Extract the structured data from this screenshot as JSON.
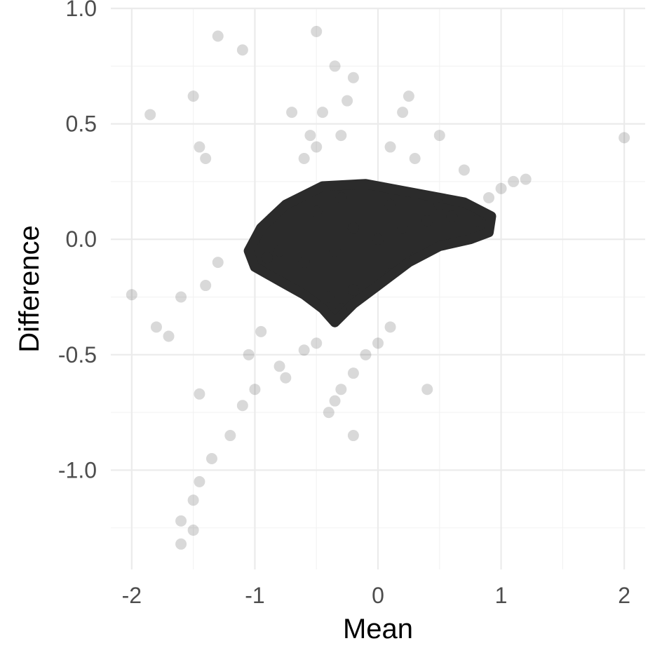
{
  "chart_data": {
    "type": "scatter",
    "title": "",
    "xlabel": "Mean",
    "ylabel": "Difference",
    "xlim": [
      -2.17,
      2.17
    ],
    "ylim": [
      -1.43,
      1.0
    ],
    "x_ticks": [
      -2,
      -1,
      0,
      1,
      2
    ],
    "x_tick_labels": [
      "-2",
      "-1",
      "0",
      "1",
      "2"
    ],
    "y_ticks": [
      -1.0,
      -0.5,
      0.0,
      0.5,
      1.0
    ],
    "y_tick_labels": [
      "-1.0",
      "-0.5",
      "0.0",
      "0.5",
      "1.0"
    ],
    "grid": true,
    "point_color": "#2b2b2b",
    "point_alpha": "very low (overplotted)",
    "point_count_note": "very dense cloud; representative sample of visible points",
    "series": [
      {
        "points": [
          [
            -0.35,
            -0.05
          ],
          [
            -0.2,
            0.05
          ],
          [
            0.0,
            0.0
          ],
          [
            0.2,
            0.05
          ],
          [
            0.4,
            0.08
          ],
          [
            0.6,
            0.1
          ],
          [
            0.8,
            0.08
          ],
          [
            -0.6,
            -0.1
          ],
          [
            -0.8,
            -0.05
          ],
          [
            -0.9,
            -0.08
          ],
          [
            -0.5,
            0.12
          ],
          [
            -0.3,
            0.18
          ],
          [
            0.1,
            0.15
          ],
          [
            0.5,
            0.15
          ],
          [
            -0.4,
            -0.25
          ],
          [
            -0.3,
            -0.3
          ],
          [
            -0.2,
            -0.22
          ],
          [
            0.1,
            -0.15
          ],
          [
            0.3,
            -0.08
          ],
          [
            -0.55,
            0.45
          ],
          [
            -0.5,
            0.4
          ],
          [
            -0.45,
            0.55
          ],
          [
            -0.3,
            0.45
          ],
          [
            -0.25,
            0.6
          ],
          [
            -0.35,
            0.75
          ],
          [
            -0.2,
            0.7
          ],
          [
            -0.6,
            0.35
          ],
          [
            -0.7,
            0.55
          ],
          [
            0.1,
            0.4
          ],
          [
            0.2,
            0.55
          ],
          [
            0.3,
            0.35
          ],
          [
            0.25,
            0.62
          ],
          [
            -1.3,
            0.88
          ],
          [
            -1.1,
            0.82
          ],
          [
            -0.5,
            0.9
          ],
          [
            -0.8,
            -0.55
          ],
          [
            -0.75,
            -0.6
          ],
          [
            -0.6,
            -0.48
          ],
          [
            -0.5,
            -0.45
          ],
          [
            -0.95,
            -0.4
          ],
          [
            -1.05,
            -0.5
          ],
          [
            -0.4,
            -0.75
          ],
          [
            -0.35,
            -0.7
          ],
          [
            -0.3,
            -0.65
          ],
          [
            -0.2,
            -0.58
          ],
          [
            -0.1,
            -0.5
          ],
          [
            0.0,
            -0.45
          ],
          [
            0.1,
            -0.38
          ],
          [
            -0.2,
            -0.85
          ],
          [
            0.4,
            -0.65
          ],
          [
            -1.6,
            -1.22
          ],
          [
            -1.5,
            -1.13
          ],
          [
            -1.45,
            -1.05
          ],
          [
            -1.35,
            -0.95
          ],
          [
            -1.2,
            -0.85
          ],
          [
            -1.1,
            -0.72
          ],
          [
            -1.0,
            -0.65
          ],
          [
            -1.6,
            -1.32
          ],
          [
            -1.5,
            -1.26
          ],
          [
            -1.7,
            -0.42
          ],
          [
            -1.8,
            -0.38
          ],
          [
            -1.6,
            -0.25
          ],
          [
            -1.4,
            -0.2
          ],
          [
            -1.3,
            -0.1
          ],
          [
            -1.45,
            -0.67
          ],
          [
            -1.5,
            0.62
          ],
          [
            -1.45,
            0.4
          ],
          [
            -1.4,
            0.35
          ],
          [
            -1.85,
            0.54
          ],
          [
            -2.0,
            -0.24
          ],
          [
            1.0,
            0.22
          ],
          [
            1.1,
            0.25
          ],
          [
            1.2,
            0.26
          ],
          [
            0.9,
            0.18
          ],
          [
            0.7,
            0.3
          ],
          [
            0.5,
            0.45
          ],
          [
            2.0,
            0.44
          ]
        ]
      }
    ]
  }
}
